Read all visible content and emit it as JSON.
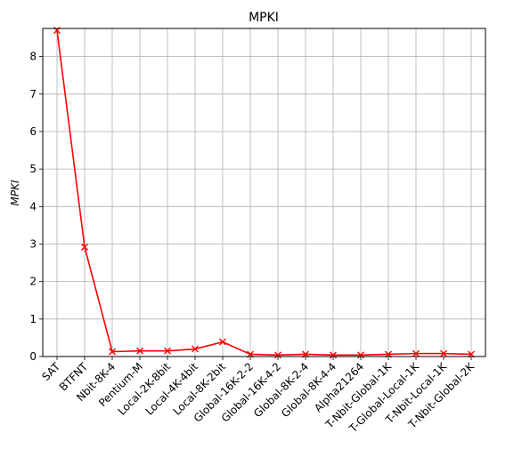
{
  "chart_data": {
    "type": "line",
    "title": "MPKI",
    "xlabel": "",
    "ylabel": "MPKI",
    "categories": [
      "SAT",
      "BTFNT",
      "Nbit-8K-4",
      "Pentium-M",
      "Local-2K-8bit",
      "Local-4K-4bit",
      "Local-8K-2bit",
      "Global-16K-2-2",
      "Global-16K-4-2",
      "Global-8K-2-4",
      "Global-8K-4-4",
      "Alpha21264",
      "T-Nbit-Global-1K",
      "T-Global-Local-1K",
      "T-Nbit-Local-1K",
      "T-Nbit-Global-2K"
    ],
    "values": [
      8.7,
      2.92,
      0.13,
      0.15,
      0.15,
      0.2,
      0.39,
      0.06,
      0.04,
      0.06,
      0.04,
      0.04,
      0.06,
      0.08,
      0.08,
      0.06
    ],
    "ylim": [
      0,
      8.75
    ],
    "yticks": [
      0,
      1,
      2,
      3,
      4,
      5,
      6,
      7,
      8
    ],
    "grid": true,
    "line_color": "#ff0000",
    "marker": "x"
  }
}
